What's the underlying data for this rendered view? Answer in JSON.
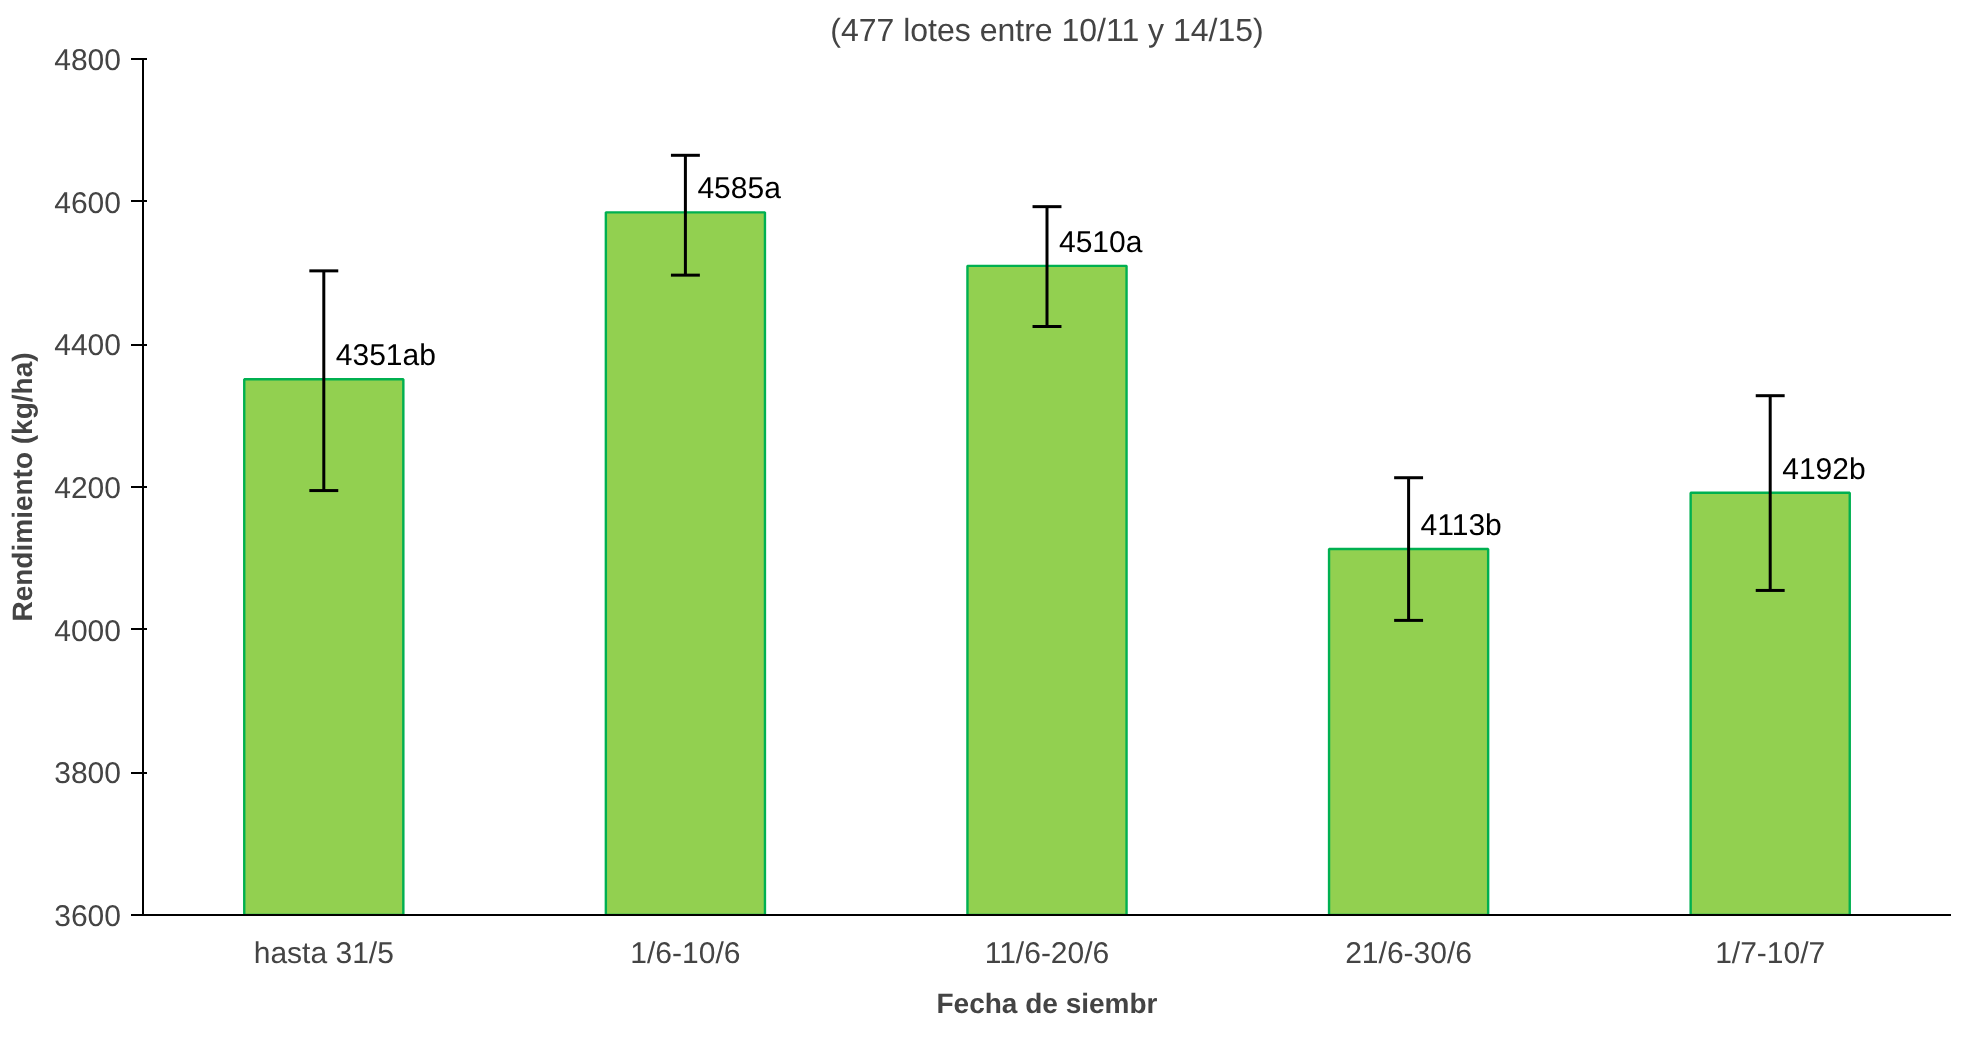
{
  "chart_data": {
    "type": "bar",
    "title": "(477 lotes entre 10/11 y 14/15)",
    "xlabel": "Fecha de siembr",
    "ylabel": "Rendimiento (kg/ha)",
    "categories": [
      "hasta 31/5",
      "1/6-10/6",
      "11/6-20/6",
      "21/6-30/6",
      "1/7-10/7"
    ],
    "values": [
      4351,
      4585,
      4510,
      4113,
      4192
    ],
    "value_labels": [
      "4351ab",
      "4585a",
      "4510a",
      "4113b",
      "4192b"
    ],
    "errors": [
      [
        4195,
        4503
      ],
      [
        4497,
        4665
      ],
      [
        4425,
        4593
      ],
      [
        4013,
        4213
      ],
      [
        4055,
        4328
      ]
    ],
    "color": "#92d050",
    "ylim": [
      3600,
      4800
    ],
    "yticks": [
      3600,
      3800,
      4000,
      4200,
      4400,
      4600,
      4800
    ],
    "grid": false
  }
}
